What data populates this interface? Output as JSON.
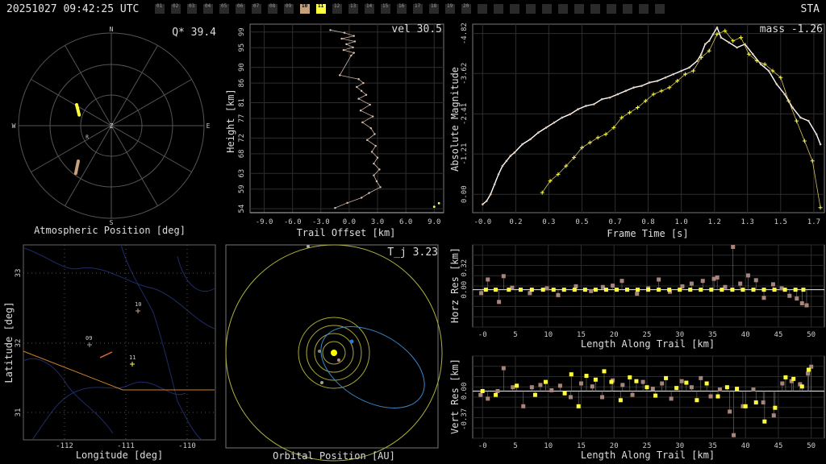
{
  "header": {
    "timestamp": "20251027 09:42:25 UTC",
    "station": "STA",
    "frame_labels": [
      "01",
      "02",
      "03",
      "04",
      "05",
      "06",
      "07",
      "08",
      "09",
      "10",
      "11",
      "12",
      "13",
      "14",
      "15",
      "16",
      "17",
      "18",
      "19",
      "20"
    ],
    "active_frames": [
      "10",
      "11"
    ],
    "colors": {
      "frame_10": "#c8a07a",
      "frame_11": "#ffff3c"
    }
  },
  "atmos": {
    "title_label": "Q* 39.4",
    "xlabel": "Atmospheric Position [deg]",
    "compass": {
      "n": "N",
      "s": "S",
      "e": "E",
      "w": "W",
      "z": "Z",
      "r": "R"
    }
  },
  "trail": {
    "title_label": "vel 30.5",
    "xlabel": "Trail Offset [km]",
    "ylabel": "Height [km]",
    "xticks": [
      "-9.0",
      "-6.0",
      "-3.0",
      "0.0",
      "3.0",
      "6.0",
      "9.0"
    ],
    "yticks": [
      "54",
      "59",
      "63",
      "68",
      "72",
      "77",
      "81",
      "86",
      "90",
      "95",
      "99"
    ]
  },
  "mag": {
    "title_label": "mass -1.26",
    "xlabel": "Frame Time [s]",
    "ylabel": "Absolute Magnitude",
    "xticks": [
      "-0.0",
      "0.2",
      "0.3",
      "0.5",
      "0.7",
      "0.8",
      "1.0",
      "1.2",
      "1.3",
      "1.5",
      "1.7"
    ],
    "yticks": [
      "0.00",
      "-1.21",
      "-2.41",
      "-3.62",
      "-4.82"
    ]
  },
  "map": {
    "xlabel": "Longitude [deg]",
    "ylabel": "Latitude [deg]",
    "xticks": [
      "-112",
      "-111",
      "-110"
    ],
    "yticks": [
      "33",
      "32",
      "31"
    ],
    "station_labels": [
      "10",
      "09",
      "11"
    ]
  },
  "orbit": {
    "title_label": "T_j 3.23",
    "xlabel": "Orbital Position [AU]"
  },
  "horz": {
    "ylabel": "Horz Res [km]",
    "xlabel": "Length Along Trail [km]",
    "yticks": [
      "0.32",
      "0.00"
    ],
    "xticks": [
      "-0",
      "5",
      "10",
      "15",
      "20",
      "25",
      "30",
      "35",
      "40",
      "45",
      "50"
    ]
  },
  "vert": {
    "ylabel": "Vert Res [km]",
    "xlabel": "Length Along Trail [km]",
    "yticks": [
      "0.00",
      "-0.37"
    ],
    "xticks": [
      "-0",
      "5",
      "10",
      "15",
      "20",
      "25",
      "30",
      "35",
      "40",
      "45",
      "50"
    ]
  },
  "chart_data": [
    {
      "type": "line",
      "panel": "trail",
      "xlabel": "Trail Offset [km]",
      "ylabel": "Height [km]",
      "xlim": [
        -10.5,
        10.0
      ],
      "ylim": [
        53,
        101
      ],
      "series": [
        {
          "x": [
            -2.0,
            -0.5,
            0.5,
            -0.8,
            0.6,
            -0.3,
            0.4,
            -0.6,
            0.5,
            0.2,
            -1.0,
            1.0,
            1.5,
            0.8,
            1.3,
            1.8,
            1.0,
            2.2,
            1.2,
            2.5,
            1.4,
            2.3,
            2.7,
            1.9,
            2.8,
            2.4,
            3.0,
            2.6,
            3.2,
            2.6,
            2.9,
            3.3,
            2.1,
            1.3,
            -0.2,
            -1.5
          ],
          "y": [
            99.5,
            98.8,
            98.0,
            97.3,
            96.6,
            95.9,
            95.1,
            94.4,
            93.7,
            93.0,
            88.0,
            87.0,
            86.0,
            85.0,
            84.0,
            83.0,
            82.0,
            80.5,
            79.0,
            77.5,
            76.0,
            74.5,
            73.0,
            71.5,
            70.0,
            68.5,
            67.0,
            65.5,
            64.0,
            62.5,
            61.0,
            59.5,
            58.0,
            56.8,
            55.5,
            54.2
          ]
        }
      ],
      "extra_points": {
        "x": [
          9.0,
          9.5
        ],
        "y": [
          54.5,
          55.4
        ]
      }
    },
    {
      "type": "line",
      "panel": "mag",
      "xlabel": "Frame Time [s]",
      "ylabel": "Absolute Magnitude",
      "xlim": [
        -0.05,
        1.72
      ],
      "ylim": [
        0.55,
        -5.1
      ],
      "series": [
        {
          "name": "",
          "color": "#e8c8b0",
          "x": [
            0.0,
            0.02,
            0.04,
            0.06,
            0.08,
            0.1,
            0.12,
            0.14,
            0.16,
            0.2,
            0.24,
            0.28,
            0.32,
            0.36,
            0.4,
            0.44,
            0.48,
            0.52,
            0.56,
            0.6,
            0.64,
            0.68,
            0.72,
            0.76,
            0.8,
            0.84,
            0.88,
            0.92,
            0.96,
            1.0,
            1.04,
            1.08,
            1.1,
            1.12,
            1.14,
            1.16,
            1.18,
            1.2,
            1.24,
            1.28,
            1.32,
            1.36,
            1.4,
            1.44,
            1.48,
            1.52,
            1.56,
            1.6,
            1.64,
            1.68,
            1.7
          ],
          "y": [
            0.3,
            0.2,
            0.0,
            -0.3,
            -0.6,
            -0.85,
            -1.0,
            -1.15,
            -1.25,
            -1.5,
            -1.65,
            -1.85,
            -2.0,
            -2.15,
            -2.3,
            -2.4,
            -2.55,
            -2.65,
            -2.7,
            -2.85,
            -2.9,
            -3.0,
            -3.1,
            -3.2,
            -3.25,
            -3.35,
            -3.4,
            -3.5,
            -3.6,
            -3.7,
            -3.8,
            -4.0,
            -4.2,
            -4.5,
            -4.6,
            -4.8,
            -5.0,
            -4.7,
            -4.55,
            -4.4,
            -4.5,
            -4.2,
            -3.9,
            -3.7,
            -3.3,
            -3.0,
            -2.6,
            -2.3,
            -2.2,
            -1.8,
            -1.5
          ]
        },
        {
          "name": "",
          "color": "#ffff3c",
          "x": [
            0.3,
            0.34,
            0.38,
            0.42,
            0.46,
            0.5,
            0.54,
            0.58,
            0.62,
            0.66,
            0.7,
            0.74,
            0.78,
            0.82,
            0.86,
            0.9,
            0.94,
            0.98,
            1.02,
            1.06,
            1.1,
            1.14,
            1.18,
            1.22,
            1.26,
            1.3,
            1.34,
            1.38,
            1.42,
            1.46,
            1.5,
            1.54,
            1.58,
            1.62,
            1.66,
            1.7
          ],
          "y": [
            -0.05,
            -0.4,
            -0.6,
            -0.85,
            -1.1,
            -1.4,
            -1.55,
            -1.7,
            -1.8,
            -2.0,
            -2.3,
            -2.45,
            -2.6,
            -2.8,
            -3.0,
            -3.1,
            -3.2,
            -3.4,
            -3.6,
            -3.7,
            -4.1,
            -4.3,
            -4.8,
            -4.9,
            -4.6,
            -4.7,
            -4.2,
            -4.0,
            -3.9,
            -3.7,
            -3.5,
            -2.8,
            -2.2,
            -1.6,
            -1.0,
            0.4
          ]
        }
      ]
    },
    {
      "type": "scatter",
      "panel": "horz",
      "xlabel": "Length Along Trail [km]",
      "ylabel": "Horz Res [km]",
      "xlim": [
        -1.5,
        52
      ],
      "ylim": [
        -0.55,
        0.66
      ],
      "series": [
        {
          "name": "",
          "color": "#a8857a",
          "x": [
            -0.2,
            0.8,
            2.5,
            3.2,
            4.5,
            7.2,
            9.8,
            11.5,
            14.2,
            16.5,
            18.3,
            19.8,
            21.2,
            23.5,
            25.2,
            26.8,
            28.5,
            30.4,
            31.8,
            33.5,
            35.2,
            35.7,
            36.9,
            38.1,
            39.2,
            40.4,
            41.6,
            42.8,
            44.2,
            45.5,
            46.7,
            47.8,
            48.6,
            49.3
          ],
          "y": [
            -0.05,
            0.15,
            -0.18,
            0.2,
            0.03,
            -0.05,
            0.02,
            -0.08,
            0.05,
            -0.02,
            0.04,
            0.06,
            0.13,
            -0.06,
            0.02,
            0.15,
            -0.03,
            0.05,
            0.09,
            0.13,
            0.16,
            0.18,
            0.04,
            0.63,
            0.09,
            0.21,
            0.14,
            -0.12,
            0.08,
            0.02,
            -0.09,
            -0.13,
            -0.2,
            -0.23
          ]
        },
        {
          "name": "",
          "color": "#ffff3c",
          "x": [
            0.5,
            2.0,
            4.0,
            5.8,
            7.5,
            9.2,
            10.8,
            12.4,
            14.0,
            15.6,
            17.2,
            18.8,
            20.4,
            22.0,
            23.6,
            25.2,
            26.8,
            28.4,
            30.0,
            31.6,
            33.2,
            34.8,
            36.4,
            38.0,
            39.6,
            41.2,
            42.8,
            44.4,
            46.0,
            47.6,
            48.8
          ],
          "y": [
            0.0,
            0.0,
            0.0,
            0.0,
            0.0,
            0.0,
            0.0,
            0.0,
            0.0,
            0.0,
            0.0,
            0.0,
            0.0,
            0.0,
            0.0,
            0.0,
            0.0,
            0.0,
            0.0,
            0.0,
            0.0,
            0.0,
            0.0,
            0.0,
            0.0,
            0.0,
            0.0,
            0.0,
            0.0,
            0.0,
            0.0
          ]
        }
      ]
    },
    {
      "type": "scatter",
      "panel": "vert",
      "xlabel": "Length Along Trail [km]",
      "ylabel": "Vert Res [km]",
      "xlim": [
        -1.5,
        52
      ],
      "ylim": [
        -0.62,
        0.46
      ],
      "series": [
        {
          "name": "",
          "color": "#a8857a",
          "x": [
            -0.3,
            0.8,
            2.3,
            3.2,
            4.6,
            6.2,
            7.5,
            8.8,
            10.5,
            11.8,
            13.4,
            15.0,
            16.7,
            18.2,
            19.8,
            21.3,
            22.8,
            24.4,
            25.9,
            27.3,
            28.7,
            30.3,
            31.8,
            33.2,
            34.7,
            36.1,
            37.6,
            38.2,
            39.6,
            41.2,
            42.7,
            44.3,
            45.6,
            47.0,
            48.3,
            49.5,
            50.0
          ],
          "y": [
            -0.05,
            -0.1,
            0.0,
            0.3,
            0.05,
            -0.2,
            0.05,
            0.08,
            0.01,
            0.07,
            -0.08,
            0.1,
            0.06,
            -0.08,
            0.14,
            0.08,
            -0.05,
            0.12,
            0.03,
            0.1,
            -0.1,
            0.13,
            0.05,
            0.17,
            -0.07,
            0.02,
            -0.27,
            -0.58,
            -0.2,
            0.02,
            -0.15,
            -0.32,
            0.1,
            0.13,
            0.09,
            0.23,
            0.32
          ]
        },
        {
          "name": "",
          "color": "#ffff3c",
          "x": [
            0.0,
            2.0,
            5.2,
            8.0,
            9.6,
            12.5,
            13.5,
            14.6,
            15.8,
            17.2,
            18.5,
            19.6,
            21.0,
            22.4,
            23.4,
            25.0,
            26.3,
            27.9,
            29.5,
            31.0,
            32.6,
            34.1,
            35.8,
            37.2,
            38.7,
            40.0,
            41.6,
            42.9,
            44.5,
            46.1,
            47.3,
            48.6,
            49.6
          ],
          "y": [
            0.0,
            -0.05,
            0.07,
            -0.05,
            0.12,
            -0.03,
            0.22,
            -0.2,
            0.2,
            0.15,
            0.26,
            0.12,
            -0.12,
            0.18,
            0.13,
            0.05,
            -0.06,
            0.17,
            0.04,
            0.11,
            -0.12,
            0.1,
            -0.07,
            0.05,
            0.03,
            -0.2,
            -0.15,
            -0.4,
            -0.22,
            0.18,
            0.16,
            0.06,
            0.28
          ]
        }
      ]
    }
  ]
}
